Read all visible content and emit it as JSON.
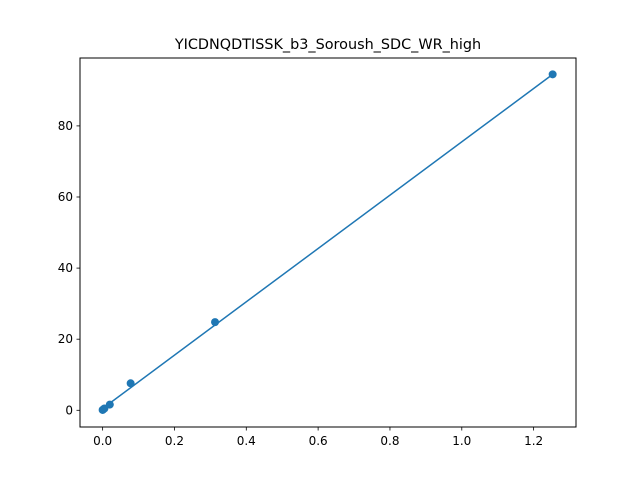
{
  "chart_data": {
    "type": "scatter",
    "title": "YICDNQDTISSK_b3_Soroush_SDC_WR_high",
    "xlabel": "",
    "ylabel": "",
    "xlim": [
      -0.063,
      1.318
    ],
    "ylim": [
      -4.7,
      99.1
    ],
    "x_ticks": [
      0.0,
      0.2,
      0.4,
      0.6,
      0.8,
      1.0,
      1.2
    ],
    "x_tick_labels": [
      "0.0",
      "0.2",
      "0.4",
      "0.6",
      "0.8",
      "1.0",
      "1.2"
    ],
    "y_ticks": [
      0,
      20,
      40,
      60,
      80
    ],
    "y_tick_labels": [
      "0",
      "20",
      "40",
      "60",
      "80"
    ],
    "grid": false,
    "series": [
      {
        "color": "#1f77b4",
        "x": [
          0.0,
          0.00125,
          0.005,
          0.02,
          0.078,
          0.313,
          1.253
        ],
        "y": [
          0.1,
          0.2,
          0.5,
          1.6,
          7.6,
          24.8,
          94.5
        ]
      }
    ],
    "fit_line": {
      "color": "#1f77b4",
      "x": [
        0.0,
        1.253
      ],
      "y": [
        0.5,
        94.5
      ]
    }
  }
}
